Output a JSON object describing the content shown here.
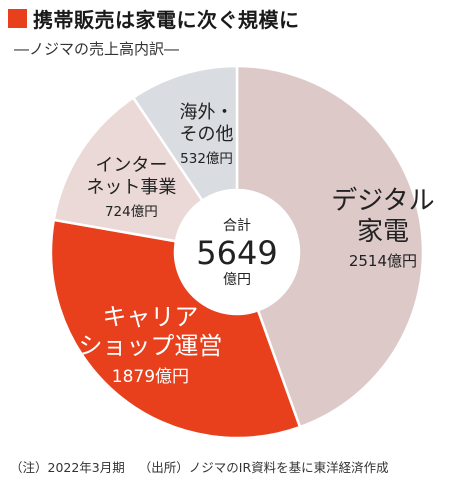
{
  "title": "携帯販売は家電に次ぐ規模に",
  "subtitle": "―ノジマの売上高内訳―",
  "footnote": {
    "note": "（注）2022年3月期",
    "source": "（出所）ノジマのIR資料を基に東洋経済作成"
  },
  "colors": {
    "accent": "#e8401c",
    "digital": "#dcc9c8",
    "internet": "#ead9d7",
    "overseas": "#d9dde2",
    "carrier": "#e8401c"
  },
  "chart_data": {
    "type": "pie",
    "variant": "donut",
    "center_label": {
      "line1": "合計",
      "line2": "5649",
      "line3": "億円"
    },
    "total": 5649,
    "unit": "億円",
    "slices": [
      {
        "label_lines": [
          "デジタル",
          "家電"
        ],
        "value": 2514,
        "value_text": "2514億円",
        "color": "#dcc9c8",
        "text_color": "#222222"
      },
      {
        "label_lines": [
          "キャリア",
          "ショップ運営"
        ],
        "value": 1879,
        "value_text": "1879億円",
        "color": "#e8401c",
        "text_color": "#ffffff"
      },
      {
        "label_lines": [
          "インター",
          "ネット事業"
        ],
        "value": 724,
        "value_text": "724億円",
        "color": "#ead9d7",
        "text_color": "#222222"
      },
      {
        "label_lines": [
          "海外・",
          "その他"
        ],
        "value": 532,
        "value_text": "532億円",
        "color": "#d9dde2",
        "text_color": "#222222"
      }
    ]
  }
}
